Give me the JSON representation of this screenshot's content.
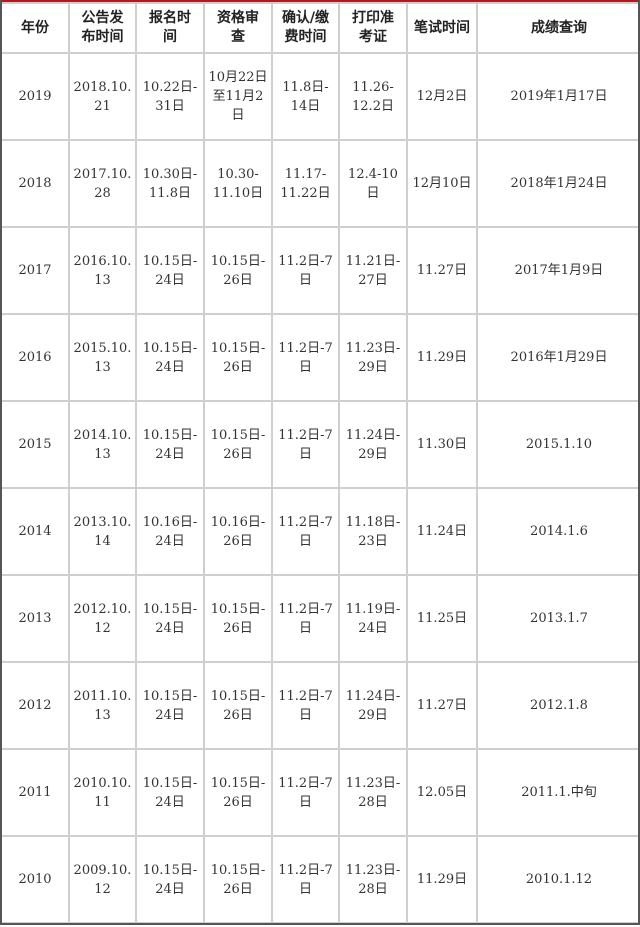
{
  "accent_color": "#c0141b",
  "headers": [
    [
      "年份"
    ],
    [
      "公告发",
      "布时间"
    ],
    [
      "报名时",
      "间"
    ],
    [
      "资格审",
      "查"
    ],
    [
      "确认/缴",
      "费时间"
    ],
    [
      "打印准",
      "考证"
    ],
    [
      "笔试时间"
    ],
    [
      "成绩查询"
    ]
  ],
  "rows": [
    [
      [
        "2019"
      ],
      [
        "2018.10.",
        "21"
      ],
      [
        "10.22日-",
        "31日"
      ],
      [
        "10月22日",
        "至11月2",
        "日"
      ],
      [
        "11.8日-",
        "14日"
      ],
      [
        "11.26-",
        "12.2日"
      ],
      [
        "12月2日"
      ],
      [
        "2019年1月17日"
      ]
    ],
    [
      [
        "2018"
      ],
      [
        "2017.10.",
        "28"
      ],
      [
        "10.30日-",
        "11.8日"
      ],
      [
        "10.30-",
        "11.10日"
      ],
      [
        "11.17-",
        "11.22日"
      ],
      [
        "12.4-10",
        "日"
      ],
      [
        "12月10日"
      ],
      [
        "2018年1月24日"
      ]
    ],
    [
      [
        "2017"
      ],
      [
        "2016.10.",
        "13"
      ],
      [
        "10.15日-",
        "24日"
      ],
      [
        "10.15日-",
        "26日"
      ],
      [
        "11.2日-7",
        "日"
      ],
      [
        "11.21日-",
        "27日"
      ],
      [
        "11.27日"
      ],
      [
        "2017年1月9日"
      ]
    ],
    [
      [
        "2016"
      ],
      [
        "2015.10.",
        "13"
      ],
      [
        "10.15日-",
        "24日"
      ],
      [
        "10.15日-",
        "26日"
      ],
      [
        "11.2日-7",
        "日"
      ],
      [
        "11.23日-",
        "29日"
      ],
      [
        "11.29日"
      ],
      [
        "2016年1月29日"
      ]
    ],
    [
      [
        "2015"
      ],
      [
        "2014.10.",
        "13"
      ],
      [
        "10.15日-",
        "24日"
      ],
      [
        "10.15日-",
        "26日"
      ],
      [
        "11.2日-7",
        "日"
      ],
      [
        "11.24日-",
        "29日"
      ],
      [
        "11.30日"
      ],
      [
        "2015.1.10"
      ]
    ],
    [
      [
        "2014"
      ],
      [
        "2013.10.",
        "14"
      ],
      [
        "10.16日-",
        "24日"
      ],
      [
        "10.16日-",
        "26日"
      ],
      [
        "11.2日-7",
        "日"
      ],
      [
        "11.18日-",
        "23日"
      ],
      [
        "11.24日"
      ],
      [
        "2014.1.6"
      ]
    ],
    [
      [
        "2013"
      ],
      [
        "2012.10.",
        "12"
      ],
      [
        "10.15日-",
        "24日"
      ],
      [
        "10.15日-",
        "26日"
      ],
      [
        "11.2日-7",
        "日"
      ],
      [
        "11.19日-",
        "24日"
      ],
      [
        "11.25日"
      ],
      [
        "2013.1.7"
      ]
    ],
    [
      [
        "2012"
      ],
      [
        "2011.10.",
        "13"
      ],
      [
        "10.15日-",
        "24日"
      ],
      [
        "10.15日-",
        "26日"
      ],
      [
        "11.2日-7",
        "日"
      ],
      [
        "11.24日-",
        "29日"
      ],
      [
        "11.27日"
      ],
      [
        "2012.1.8"
      ]
    ],
    [
      [
        "2011"
      ],
      [
        "2010.10.",
        "11"
      ],
      [
        "10.15日-",
        "24日"
      ],
      [
        "10.15日-",
        "26日"
      ],
      [
        "11.2日-7",
        "日"
      ],
      [
        "11.23日-",
        "28日"
      ],
      [
        "12.05日"
      ],
      [
        "2011.1.中旬"
      ]
    ],
    [
      [
        "2010"
      ],
      [
        "2009.10.",
        "12"
      ],
      [
        "10.15日-",
        "24日"
      ],
      [
        "10.15日-",
        "26日"
      ],
      [
        "11.2日-7",
        "日"
      ],
      [
        "11.23日-",
        "28日"
      ],
      [
        "11.29日"
      ],
      [
        "2010.1.12"
      ]
    ]
  ]
}
